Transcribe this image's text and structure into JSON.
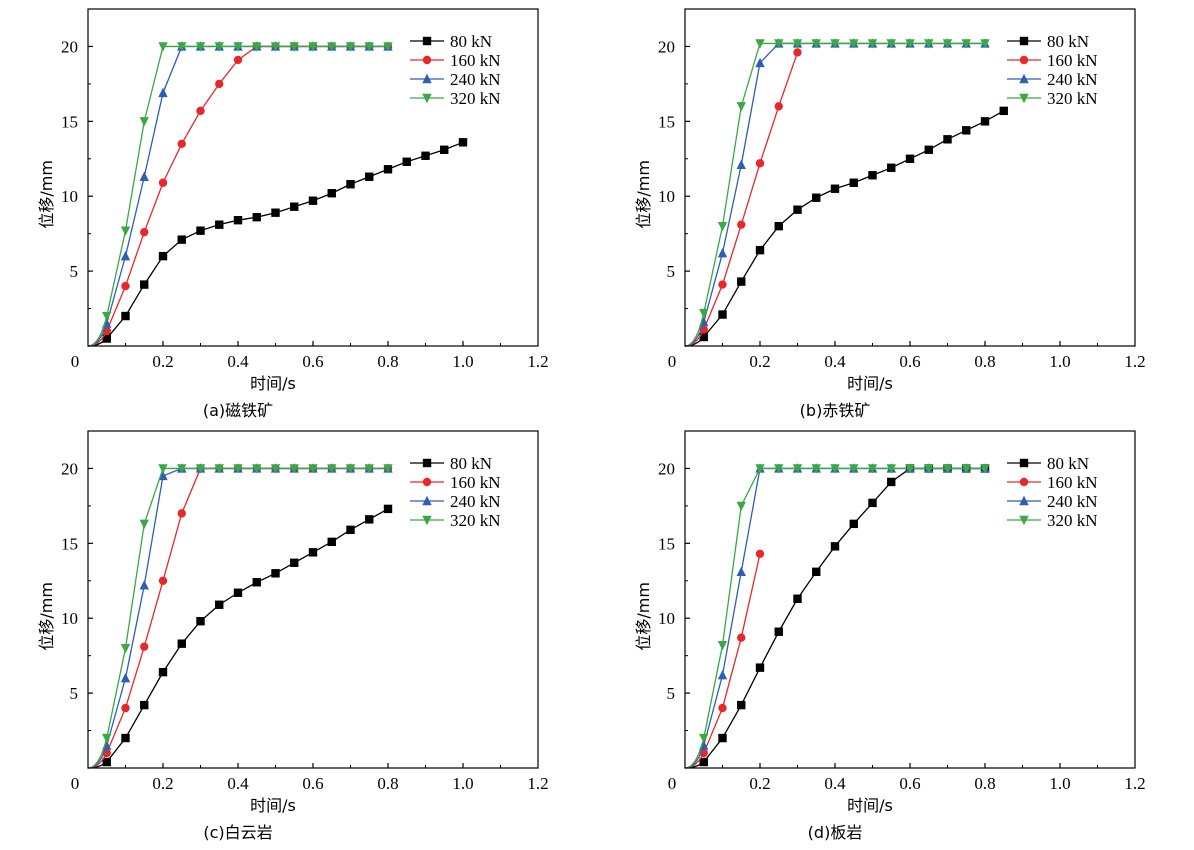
{
  "chart_data": [
    {
      "type": "line",
      "caption": "(a)磁铁矿",
      "xlabel": "时间/s",
      "ylabel": "位移/mm",
      "xlim": [
        0,
        1.2
      ],
      "ylim": [
        0,
        22.5
      ],
      "x_ticks": [
        "0",
        "0.2",
        "0.4",
        "0.6",
        "0.8",
        "1.0",
        "1.2"
      ],
      "y_ticks": [
        "5",
        "10",
        "15",
        "20"
      ],
      "legend_position": "top-right",
      "series": [
        {
          "name": "80 kN",
          "color": "#000000",
          "marker": "square",
          "x": [
            0.05,
            0.1,
            0.15,
            0.2,
            0.25,
            0.3,
            0.35,
            0.4,
            0.45,
            0.5,
            0.55,
            0.6,
            0.65,
            0.7,
            0.75,
            0.8,
            0.85,
            0.9,
            0.95,
            1.0
          ],
          "y": [
            0.5,
            2.0,
            4.1,
            6.0,
            7.1,
            7.7,
            8.1,
            8.4,
            8.6,
            8.9,
            9.3,
            9.7,
            10.2,
            10.8,
            11.3,
            11.8,
            12.3,
            12.7,
            13.1,
            13.6
          ]
        },
        {
          "name": "160 kN",
          "color": "#e8272a",
          "marker": "circle",
          "x": [
            0.05,
            0.1,
            0.15,
            0.2,
            0.25,
            0.3,
            0.35,
            0.4,
            0.45,
            0.5,
            0.55,
            0.6,
            0.65,
            0.7,
            0.75,
            0.8
          ],
          "y": [
            1.0,
            4.0,
            7.6,
            10.9,
            13.5,
            15.7,
            17.5,
            19.1,
            20,
            20,
            20,
            20,
            20,
            20,
            20,
            20
          ]
        },
        {
          "name": "240 kN",
          "color": "#2f5eb5",
          "marker": "triangle-up",
          "x": [
            0.05,
            0.1,
            0.15,
            0.2,
            0.25,
            0.3,
            0.35,
            0.4,
            0.45,
            0.5,
            0.55,
            0.6,
            0.65,
            0.7,
            0.75,
            0.8
          ],
          "y": [
            1.5,
            6.0,
            11.3,
            16.9,
            20,
            20,
            20,
            20,
            20,
            20,
            20,
            20,
            20,
            20,
            20,
            20
          ]
        },
        {
          "name": "320 kN",
          "color": "#3aa845",
          "marker": "triangle-down",
          "x": [
            0.05,
            0.1,
            0.15,
            0.2,
            0.25,
            0.3,
            0.35,
            0.4,
            0.45,
            0.5,
            0.55,
            0.6,
            0.65,
            0.7,
            0.75,
            0.8
          ],
          "y": [
            2.0,
            7.7,
            15.0,
            20,
            20,
            20,
            20,
            20,
            20,
            20,
            20,
            20,
            20,
            20,
            20,
            20
          ]
        }
      ]
    },
    {
      "type": "line",
      "caption": "(b)赤铁矿",
      "xlabel": "时间/s",
      "ylabel": "位移/mm",
      "xlim": [
        0,
        1.2
      ],
      "ylim": [
        0,
        22.5
      ],
      "x_ticks": [
        "0",
        "0.2",
        "0.4",
        "0.6",
        "0.8",
        "1.0",
        "1.2"
      ],
      "y_ticks": [
        "5",
        "10",
        "15",
        "20"
      ],
      "legend_position": "top-right",
      "series": [
        {
          "name": "80 kN",
          "color": "#000000",
          "marker": "square",
          "x": [
            0.05,
            0.1,
            0.15,
            0.2,
            0.25,
            0.3,
            0.35,
            0.4,
            0.45,
            0.5,
            0.55,
            0.6,
            0.65,
            0.7,
            0.75,
            0.8,
            0.85
          ],
          "y": [
            0.6,
            2.1,
            4.3,
            6.4,
            8.0,
            9.1,
            9.9,
            10.5,
            10.9,
            11.4,
            11.9,
            12.5,
            13.1,
            13.8,
            14.4,
            15.0,
            15.7
          ]
        },
        {
          "name": "160 kN",
          "color": "#e8272a",
          "marker": "circle",
          "x": [
            0.05,
            0.1,
            0.15,
            0.2,
            0.25,
            0.3
          ],
          "y": [
            1.1,
            4.1,
            8.1,
            12.2,
            16.0,
            19.6
          ]
        },
        {
          "name": "240 kN",
          "color": "#2f5eb5",
          "marker": "triangle-up",
          "x": [
            0.05,
            0.1,
            0.15,
            0.2,
            0.25,
            0.3,
            0.35,
            0.4,
            0.45,
            0.5,
            0.55,
            0.6,
            0.65,
            0.7,
            0.75,
            0.8
          ],
          "y": [
            1.6,
            6.2,
            12.1,
            18.9,
            20.2,
            20.2,
            20.2,
            20.2,
            20.2,
            20.2,
            20.2,
            20.2,
            20.2,
            20.2,
            20.2,
            20.2
          ]
        },
        {
          "name": "320 kN",
          "color": "#3aa845",
          "marker": "triangle-down",
          "x": [
            0.05,
            0.1,
            0.15,
            0.2,
            0.25,
            0.3,
            0.35,
            0.4,
            0.45,
            0.5,
            0.55,
            0.6,
            0.65,
            0.7,
            0.75,
            0.8
          ],
          "y": [
            2.2,
            8.0,
            16.0,
            20.2,
            20.2,
            20.2,
            20.2,
            20.2,
            20.2,
            20.2,
            20.2,
            20.2,
            20.2,
            20.2,
            20.2,
            20.2
          ]
        }
      ]
    },
    {
      "type": "line",
      "caption": "(c)白云岩",
      "xlabel": "时间/s",
      "ylabel": "位移/mm",
      "xlim": [
        0,
        1.2
      ],
      "ylim": [
        0,
        22.5
      ],
      "x_ticks": [
        "0",
        "0.2",
        "0.4",
        "0.6",
        "0.8",
        "1.0",
        "1.2"
      ],
      "y_ticks": [
        "5",
        "10",
        "15",
        "20"
      ],
      "legend_position": "top-right",
      "series": [
        {
          "name": "80 kN",
          "color": "#000000",
          "marker": "square",
          "x": [
            0.05,
            0.1,
            0.15,
            0.2,
            0.25,
            0.3,
            0.35,
            0.4,
            0.45,
            0.5,
            0.55,
            0.6,
            0.65,
            0.7,
            0.75,
            0.8
          ],
          "y": [
            0.4,
            2.0,
            4.2,
            6.4,
            8.3,
            9.8,
            10.9,
            11.7,
            12.4,
            13.0,
            13.7,
            14.4,
            15.1,
            15.9,
            16.6,
            17.3
          ]
        },
        {
          "name": "160 kN",
          "color": "#e8272a",
          "marker": "circle",
          "x": [
            0.05,
            0.1,
            0.15,
            0.2,
            0.25,
            0.3,
            0.35,
            0.4,
            0.45,
            0.5,
            0.55,
            0.6,
            0.65,
            0.7,
            0.75,
            0.8
          ],
          "y": [
            1.0,
            4.0,
            8.1,
            12.5,
            17.0,
            20,
            20,
            20,
            20,
            20,
            20,
            20,
            20,
            20,
            20,
            20
          ]
        },
        {
          "name": "240 kN",
          "color": "#2f5eb5",
          "marker": "triangle-up",
          "x": [
            0.05,
            0.1,
            0.15,
            0.2,
            0.25,
            0.3,
            0.35,
            0.4,
            0.45,
            0.5,
            0.55,
            0.6,
            0.65,
            0.7,
            0.75,
            0.8
          ],
          "y": [
            1.5,
            6.0,
            12.2,
            19.5,
            20,
            20,
            20,
            20,
            20,
            20,
            20,
            20,
            20,
            20,
            20,
            20
          ]
        },
        {
          "name": "320 kN",
          "color": "#3aa845",
          "marker": "triangle-down",
          "x": [
            0.05,
            0.1,
            0.15,
            0.2,
            0.25,
            0.3,
            0.35,
            0.4,
            0.45,
            0.5,
            0.55,
            0.6,
            0.65,
            0.7,
            0.75,
            0.8
          ],
          "y": [
            2.0,
            8.0,
            16.3,
            20,
            20,
            20,
            20,
            20,
            20,
            20,
            20,
            20,
            20,
            20,
            20,
            20
          ]
        }
      ]
    },
    {
      "type": "line",
      "caption": "(d)板岩",
      "xlabel": "时间/s",
      "ylabel": "位移/mm",
      "xlim": [
        0,
        1.2
      ],
      "ylim": [
        0,
        22.5
      ],
      "x_ticks": [
        "0",
        "0.2",
        "0.4",
        "0.6",
        "0.8",
        "1.0",
        "1.2"
      ],
      "y_ticks": [
        "5",
        "10",
        "15",
        "20"
      ],
      "legend_position": "top-right",
      "series": [
        {
          "name": "80 kN",
          "color": "#000000",
          "marker": "square",
          "x": [
            0.05,
            0.1,
            0.15,
            0.2,
            0.25,
            0.3,
            0.35,
            0.4,
            0.45,
            0.5,
            0.55,
            0.6,
            0.65,
            0.7,
            0.75,
            0.8
          ],
          "y": [
            0.4,
            2.0,
            4.2,
            6.7,
            9.1,
            11.3,
            13.1,
            14.8,
            16.3,
            17.7,
            19.1,
            20,
            20,
            20,
            20,
            20
          ]
        },
        {
          "name": "160 kN",
          "color": "#e8272a",
          "marker": "circle",
          "x": [
            0.05,
            0.1,
            0.15,
            0.2
          ],
          "y": [
            1.0,
            4.0,
            8.7,
            14.3
          ]
        },
        {
          "name": "240 kN",
          "color": "#2f5eb5",
          "marker": "triangle-up",
          "x": [
            0.05,
            0.1,
            0.15,
            0.2,
            0.25,
            0.3,
            0.35,
            0.4,
            0.45,
            0.5,
            0.55,
            0.6,
            0.65,
            0.7,
            0.75,
            0.8
          ],
          "y": [
            1.5,
            6.2,
            13.1,
            20,
            20,
            20,
            20,
            20,
            20,
            20,
            20,
            20,
            20,
            20,
            20,
            20
          ]
        },
        {
          "name": "320 kN",
          "color": "#3aa845",
          "marker": "triangle-down",
          "x": [
            0.05,
            0.1,
            0.15,
            0.2,
            0.25,
            0.3,
            0.35,
            0.4,
            0.45,
            0.5,
            0.55,
            0.6,
            0.65,
            0.7,
            0.75,
            0.8
          ],
          "y": [
            2.0,
            8.2,
            17.5,
            20,
            20,
            20,
            20,
            20,
            20,
            20,
            20,
            20,
            20,
            20,
            20,
            20
          ]
        }
      ]
    }
  ]
}
